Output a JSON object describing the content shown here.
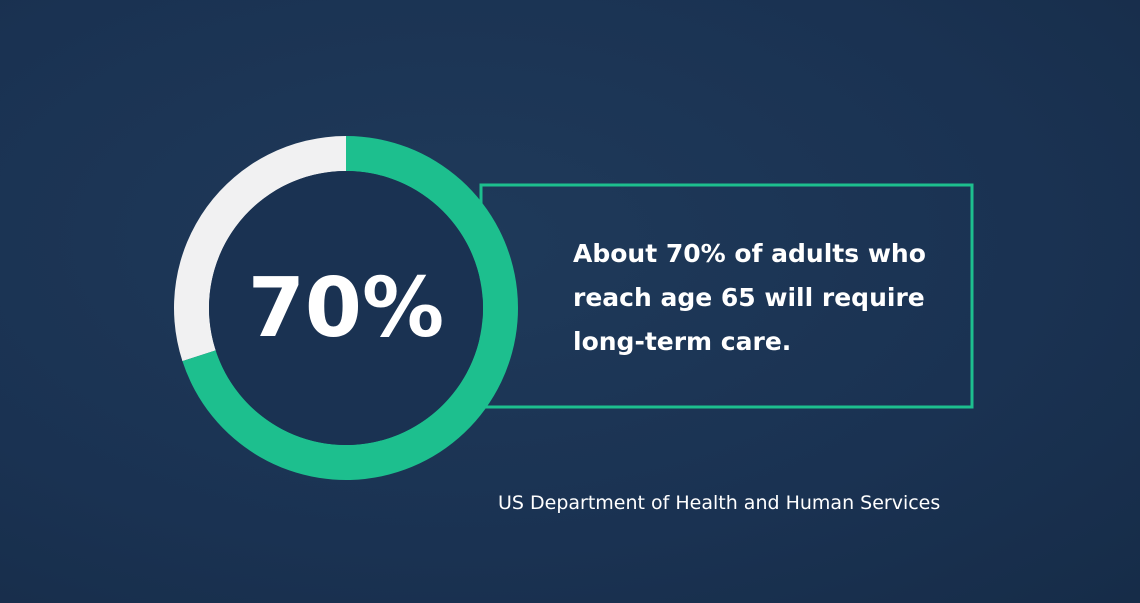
{
  "chart_data": {
    "type": "donut",
    "categories": [
      null,
      null
    ],
    "values": [
      70,
      30
    ],
    "value_labels": [
      "70%",
      null
    ],
    "colors": [
      "#1dbf8e",
      "#f1f1f2"
    ],
    "annotation": "About 70% of adults who reach age 65 will require long-term care.",
    "source": "US Department of Health and Human Services"
  }
}
